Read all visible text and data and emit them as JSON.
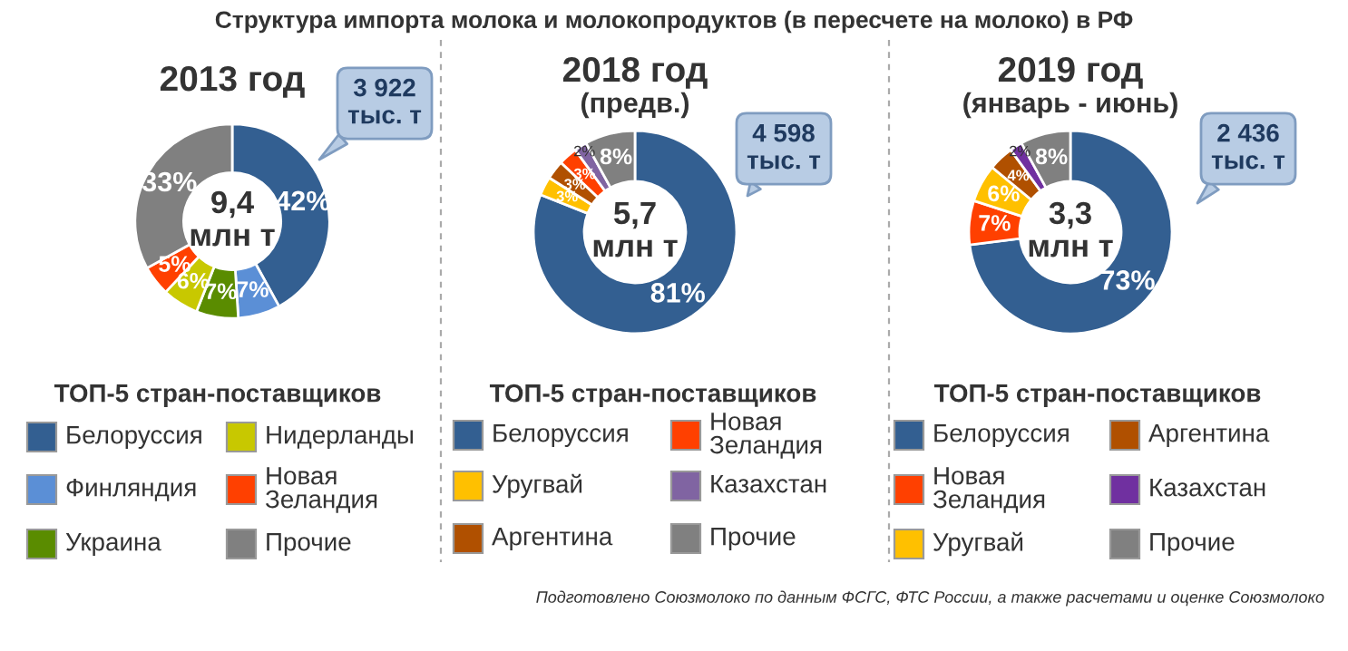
{
  "chart_data": [
    {
      "type": "donut",
      "title": "2013 год",
      "legend_title": "ТОП-5 стран-поставщиков",
      "legend": "bottom",
      "categories": [
        "Белоруссия",
        "Финляндия",
        "Украина",
        "Нидерланды",
        "Новая\nЗеландия",
        "Прочие"
      ],
      "values": [
        42,
        7,
        7,
        6,
        5,
        33
      ],
      "value_labels": [
        "42%",
        "7%",
        "7%",
        "6%",
        "5%",
        "33%"
      ],
      "colors": [
        "#335f91",
        "#5b8fd6",
        "#5a8c00",
        "#c8c800",
        "#ff4000",
        "#808080"
      ],
      "annotations": [
        "9,4\nмлн т",
        "3 922\nтыс. т",
        "Структура импорта молока и молокопродуктов (в пересчете на молоко) в РФ"
      ]
    },
    {
      "type": "donut",
      "title": "2018 год",
      "subtitle": "(предв.)",
      "legend_title": "ТОП-5 стран-поставщиков",
      "legend": "bottom",
      "categories": [
        "Белоруссия",
        "Уругвай",
        "Аргентина",
        "Новая\nЗеландия",
        "Казахстан",
        "Прочие"
      ],
      "values": [
        81,
        3,
        3,
        3,
        2,
        8
      ],
      "value_labels": [
        "81%",
        "3%",
        "3%",
        "3%",
        "2%",
        "8%"
      ],
      "colors": [
        "#335f91",
        "#ffc000",
        "#b05000",
        "#ff4000",
        "#8064a2",
        "#808080"
      ],
      "annotations": [
        "5,7\nмлн т",
        "4 598\nтыс. т"
      ]
    },
    {
      "type": "donut",
      "title": "2019 год",
      "subtitle": "(январь - июнь)",
      "legend_title": "ТОП-5 стран-поставщиков",
      "legend": "bottom",
      "categories": [
        "Белоруссия",
        "Новая\nЗеландия",
        "Уругвай",
        "Аргентина",
        "Казахстан",
        "Прочие"
      ],
      "values": [
        73,
        7,
        6,
        4,
        2,
        8
      ],
      "value_labels": [
        "73%",
        "7%",
        "6%",
        "4%",
        "2%",
        "8%"
      ],
      "colors": [
        "#335f91",
        "#ff4000",
        "#ffc000",
        "#b05000",
        "#7030a0",
        "#808080"
      ],
      "annotations": [
        "3,3\nмлн т",
        "2 436\nтыс. т",
        "Подготовлено Союзмолоко по данным ФСГС, ФТС России, а также расчетами и оценке Союзмолоко"
      ]
    }
  ]
}
